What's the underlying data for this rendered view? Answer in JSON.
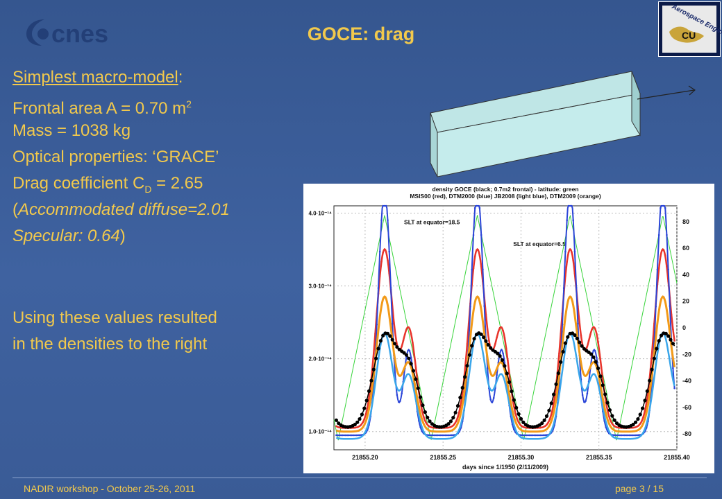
{
  "slide": {
    "title": "GOCE: drag",
    "cnes_logo_text": "cnes",
    "cu_logo_text": "Aerospace Engineering",
    "model_heading": "Simplest macro-model",
    "heading_colon": ":",
    "frontal_area_prefix": "Frontal area A = 0.70 m",
    "frontal_area_sup": "2",
    "mass": "Mass = 1038 kg",
    "optical": "Optical properties: ‘GRACE’",
    "drag_prefix": "Drag coefficient C",
    "drag_sub": "D",
    "drag_value": " = 2.65",
    "open_paren": "(",
    "accommodated": "Accommodated diffuse=2.01",
    "specular": "Specular: 0.64",
    "close_paren": ")",
    "conclusion_1": "Using these values resulted",
    "conclusion_2": "in the densities to the right",
    "footer_left": "NADIR workshop  -  October 25-26, 2011",
    "footer_right": "page 3 / 15"
  },
  "colors": {
    "text_accent": "#f2c94c",
    "background": "#3b5c95",
    "satellite_box": "#bfe6e6"
  },
  "chart_data": {
    "type": "line",
    "title": "density GOCE (black; 0.7m2 frontal) -  latitude: green",
    "subtitle": "MSIS00 (red), DTM2000 (blue) JB2008 (light blue), DTM2009 (orange)",
    "xlabel": "days since 1/1950 (2/11/2009)",
    "ylabel": "",
    "x_tick_labels": [
      "21855.20",
      "21855.25",
      "21855.30",
      "21855.35",
      "21855.40"
    ],
    "y_tick_labels": [
      "1.0·10⁻¹⁴",
      "2.0·10⁻¹⁴",
      "3.0·10⁻¹⁴",
      "4.0·10⁻¹⁴"
    ],
    "y2_tick_labels": [
      "-80",
      "-60",
      "-40",
      "-20",
      "0",
      "20",
      "40",
      "60",
      "80"
    ],
    "xlim": [
      21855.18,
      21855.4
    ],
    "ylim": [
      7.5e-15,
      4.1e-14
    ],
    "y2lim": [
      -92,
      92
    ],
    "grid": true,
    "annotations": [
      {
        "text": "SLT at equator=18.5",
        "x": 21855.225,
        "y": 3.85e-14
      },
      {
        "text": "SLT at equator=6.5",
        "x": 21855.295,
        "y": 3.55e-14
      }
    ],
    "series": [
      {
        "name": "MSIS00",
        "color": "#e8332a",
        "markers": "dots",
        "width": 2.5,
        "base": 1.05e-14,
        "amp": 2.45e-14,
        "second": 0.55,
        "width_scale": 1.0,
        "drift": 0.0
      },
      {
        "name": "DTM2000",
        "color": "#2b45d8",
        "markers": "dots",
        "width": 2.0,
        "base": 9.5e-15,
        "amp": 3.35e-14,
        "second": 0.35,
        "width_scale": 0.75,
        "drift": 0.0
      },
      {
        "name": "JB2008",
        "color": "#3aa6ea",
        "markers": "none",
        "width": 2.5,
        "base": 9e-15,
        "amp": 1.45e-14,
        "second": 0.6,
        "width_scale": 1.0,
        "drift": 0.0
      },
      {
        "name": "DTM2009",
        "color": "#f29a18",
        "markers": "none",
        "width": 3.0,
        "base": 1e-14,
        "amp": 1.85e-14,
        "second": 0.5,
        "width_scale": 1.0,
        "drift": 0.0
      },
      {
        "name": "GOCE",
        "color": "#000000",
        "markers": "big",
        "width": 1.5,
        "base": 1.05e-14,
        "amp": 1.25e-14,
        "second": 0.65,
        "width_scale": 1.4,
        "drift": 0.0
      }
    ],
    "latitude": {
      "name": "latitude",
      "color": "#37d43a",
      "min": -85,
      "max": 85,
      "period": 0.0595,
      "peak_x": 21855.2125
    }
  }
}
